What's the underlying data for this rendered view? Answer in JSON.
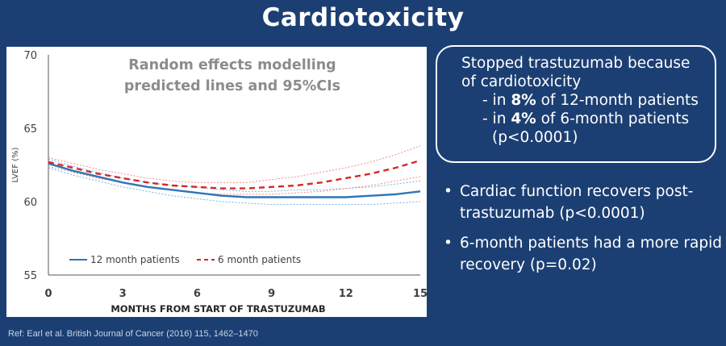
{
  "slide": {
    "title": "Cardiotoxicity"
  },
  "callout": {
    "line1": "Stopped trastuzumab because",
    "line2": "of cardiotoxicity",
    "item1_prefix": "- in ",
    "item1_bold": "8%",
    "item1_suffix": " of 12-month patients",
    "item2_prefix": "- in ",
    "item2_bold": "4%",
    "item2_suffix": " of 6-month patients",
    "pvalue": "(p<0.0001)"
  },
  "bullets": [
    {
      "symbol": "•",
      "text": "Cardiac function recovers post-trastuzumab (p<0.0001)"
    },
    {
      "symbol": "•",
      "text": "6-month patients had a more rapid recovery (p=0.02)"
    }
  ],
  "reference": "Ref: Earl et al. British Journal of Cancer (2016) 115, 1462–1470",
  "chart_data": {
    "type": "line",
    "annotation_lines": [
      "Random effects modelling",
      "predicted lines and 95%CIs"
    ],
    "xlabel": "MONTHS FROM START OF TRASTUZUMAB",
    "ylabel": "LVEF (%)",
    "xlim": [
      0,
      15
    ],
    "ylim": [
      55,
      70
    ],
    "x_ticks": [
      0,
      3,
      6,
      9,
      12,
      15
    ],
    "y_ticks": [
      55,
      60,
      65,
      70
    ],
    "grid": false,
    "legend_position": "bottom-left",
    "colors": {
      "twelve_month": "#2e75b6",
      "six_month": "#d62728",
      "axis": "#595959"
    },
    "x": [
      0,
      1,
      2,
      3,
      4,
      5,
      6,
      7,
      8,
      9,
      10,
      11,
      12,
      13,
      14,
      15
    ],
    "series": [
      {
        "name": "12 month patients",
        "style": "solid",
        "values": [
          62.6,
          62.1,
          61.7,
          61.3,
          61.0,
          60.8,
          60.6,
          60.4,
          60.3,
          60.3,
          60.3,
          60.3,
          60.3,
          60.4,
          60.5,
          60.7
        ],
        "ci_lower": [
          62.3,
          61.8,
          61.4,
          61.0,
          60.7,
          60.4,
          60.2,
          60.0,
          59.9,
          59.8,
          59.8,
          59.8,
          59.8,
          59.8,
          59.9,
          60.0
        ],
        "ci_upper": [
          62.9,
          62.4,
          62.0,
          61.6,
          61.3,
          61.1,
          61.0,
          60.8,
          60.7,
          60.7,
          60.8,
          60.8,
          60.9,
          61.0,
          61.2,
          61.4
        ]
      },
      {
        "name": "6 month patients",
        "style": "dashed",
        "values": [
          62.7,
          62.3,
          61.9,
          61.6,
          61.3,
          61.1,
          61.0,
          60.9,
          60.9,
          61.0,
          61.1,
          61.3,
          61.6,
          61.9,
          62.3,
          62.8
        ],
        "ci_lower": [
          62.4,
          62.0,
          61.6,
          61.3,
          61.0,
          60.8,
          60.6,
          60.5,
          60.5,
          60.5,
          60.6,
          60.7,
          60.9,
          61.1,
          61.4,
          61.7
        ],
        "ci_upper": [
          63.0,
          62.6,
          62.2,
          61.9,
          61.6,
          61.4,
          61.3,
          61.3,
          61.3,
          61.5,
          61.7,
          62.0,
          62.3,
          62.7,
          63.2,
          63.8
        ]
      }
    ]
  }
}
